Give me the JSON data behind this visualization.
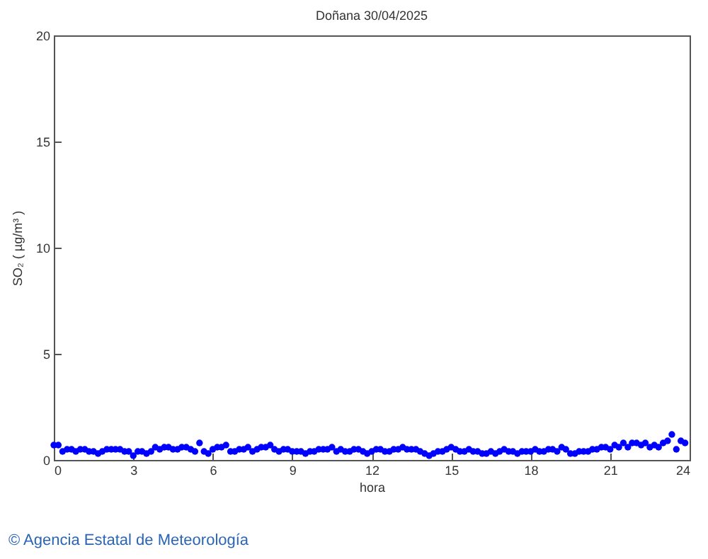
{
  "chart_data": {
    "type": "scatter",
    "title": "Doñana 30/04/2025",
    "xlabel": "hora",
    "ylabel": "SO₂ ( µg/m³ )",
    "annotations": [
      "© Agencia Estatal de Meteorología"
    ],
    "xlim": [
      0,
      24
    ],
    "xticks": [
      0,
      3,
      6,
      9,
      12,
      15,
      18,
      21,
      24
    ],
    "ylim": [
      0,
      20
    ],
    "yticks": [
      0,
      5,
      10,
      15,
      20
    ],
    "grid": false,
    "marker": "circle",
    "x": [
      0,
      0.17,
      0.33,
      0.5,
      0.67,
      0.83,
      1,
      1.17,
      1.33,
      1.5,
      1.67,
      1.83,
      2,
      2.17,
      2.33,
      2.5,
      2.67,
      2.83,
      3,
      3.17,
      3.33,
      3.5,
      3.67,
      3.83,
      4,
      4.17,
      4.33,
      4.5,
      4.67,
      4.83,
      5,
      5.17,
      5.33,
      5.5,
      5.67,
      5.83,
      6,
      6.17,
      6.33,
      6.5,
      6.67,
      6.83,
      7,
      7.17,
      7.33,
      7.5,
      7.67,
      7.83,
      8,
      8.17,
      8.33,
      8.5,
      8.67,
      8.83,
      9,
      9.17,
      9.33,
      9.5,
      9.67,
      9.83,
      10,
      10.17,
      10.33,
      10.5,
      10.67,
      10.83,
      11,
      11.17,
      11.33,
      11.5,
      11.67,
      11.83,
      12,
      12.17,
      12.33,
      12.5,
      12.67,
      12.83,
      13,
      13.17,
      13.33,
      13.5,
      13.67,
      13.83,
      14,
      14.17,
      14.33,
      14.5,
      14.67,
      14.83,
      15,
      15.17,
      15.33,
      15.5,
      15.67,
      15.83,
      16,
      16.17,
      16.33,
      16.5,
      16.67,
      16.83,
      17,
      17.17,
      17.33,
      17.5,
      17.67,
      17.83,
      18,
      18.17,
      18.33,
      18.5,
      18.67,
      18.83,
      19,
      19.17,
      19.33,
      19.5,
      19.67,
      19.83,
      20,
      20.17,
      20.33,
      20.5,
      20.67,
      20.83,
      21,
      21.17,
      21.33,
      21.5,
      21.67,
      21.83,
      22,
      22.17,
      22.33,
      22.5,
      22.67,
      22.83,
      23,
      23.17,
      23.33,
      23.5,
      23.67,
      23.83
    ],
    "series": [
      {
        "color": "#0000ff",
        "values": [
          0.7,
          0.7,
          0.4,
          0.5,
          0.5,
          0.4,
          0.5,
          0.5,
          0.4,
          0.4,
          0.3,
          0.4,
          0.5,
          0.5,
          0.5,
          0.5,
          0.4,
          0.4,
          0.2,
          0.4,
          0.4,
          0.3,
          0.4,
          0.6,
          0.5,
          0.6,
          0.6,
          0.5,
          0.5,
          0.6,
          0.6,
          0.5,
          0.4,
          0.8,
          0.4,
          0.3,
          0.5,
          0.6,
          0.6,
          0.7,
          0.4,
          0.4,
          0.5,
          0.5,
          0.6,
          0.4,
          0.5,
          0.6,
          0.6,
          0.7,
          0.5,
          0.4,
          0.5,
          0.5,
          0.4,
          0.4,
          0.4,
          0.3,
          0.4,
          0.4,
          0.5,
          0.5,
          0.5,
          0.6,
          0.4,
          0.5,
          0.4,
          0.4,
          0.5,
          0.5,
          0.4,
          0.3,
          0.4,
          0.5,
          0.5,
          0.4,
          0.4,
          0.5,
          0.5,
          0.6,
          0.5,
          0.5,
          0.5,
          0.4,
          0.3,
          0.2,
          0.3,
          0.4,
          0.4,
          0.5,
          0.6,
          0.5,
          0.4,
          0.4,
          0.5,
          0.4,
          0.4,
          0.3,
          0.3,
          0.4,
          0.3,
          0.4,
          0.5,
          0.4,
          0.4,
          0.3,
          0.4,
          0.4,
          0.4,
          0.5,
          0.4,
          0.4,
          0.5,
          0.5,
          0.4,
          0.6,
          0.5,
          0.3,
          0.3,
          0.4,
          0.4,
          0.4,
          0.5,
          0.5,
          0.6,
          0.6,
          0.5,
          0.7,
          0.6,
          0.8,
          0.6,
          0.8,
          0.8,
          0.7,
          0.8,
          0.6,
          0.7,
          0.6,
          0.8,
          0.9,
          1.2,
          0.5,
          0.9,
          0.8
        ]
      }
    ]
  }
}
